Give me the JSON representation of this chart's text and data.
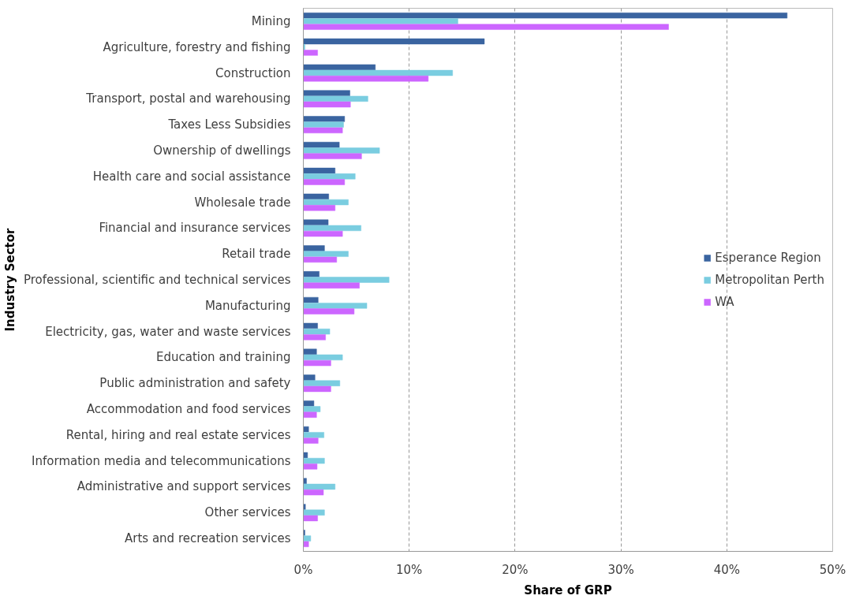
{
  "chart_data": {
    "type": "bar",
    "orientation": "horizontal",
    "xlabel": "Share of GRP",
    "ylabel": "Industry Sector",
    "categories": [
      "Mining",
      "Agriculture, forestry and fishing",
      "Construction",
      "Transport, postal and warehousing",
      "Taxes Less Subsidies",
      "Ownership of dwellings",
      "Health care and social assistance",
      "Wholesale trade",
      "Financial and insurance services",
      "Retail trade",
      "Professional, scientific and technical services",
      "Manufacturing",
      "Electricity, gas, water and waste services",
      "Education and training",
      "Public administration and safety",
      "Accommodation and food services",
      "Rental, hiring and real estate services",
      "Information media and telecommunications",
      "Administrative and support services",
      "Other services",
      "Arts and recreation services"
    ],
    "series": [
      {
        "name": "Esperance Region",
        "color": "#3a64a0",
        "values": [
          45.7,
          17.1,
          6.8,
          4.4,
          3.9,
          3.4,
          3.0,
          2.4,
          2.35,
          2.0,
          1.5,
          1.4,
          1.35,
          1.25,
          1.1,
          1.0,
          0.5,
          0.4,
          0.3,
          0.2,
          0.15
        ]
      },
      {
        "name": "Metropolitan Perth",
        "color": "#7acde0",
        "values": [
          14.6,
          0.15,
          14.1,
          6.1,
          3.8,
          7.2,
          4.9,
          4.25,
          5.45,
          4.25,
          8.1,
          6.0,
          2.5,
          3.7,
          3.45,
          1.6,
          1.95,
          2.0,
          3.0,
          2.0,
          0.7
        ]
      },
      {
        "name": "WA",
        "color": "#cc66ff",
        "values": [
          34.5,
          1.35,
          11.8,
          4.45,
          3.7,
          5.5,
          3.9,
          3.0,
          3.7,
          3.15,
          5.3,
          4.8,
          2.1,
          2.6,
          2.6,
          1.25,
          1.4,
          1.3,
          1.9,
          1.35,
          0.5
        ]
      }
    ],
    "xlim": [
      0,
      50
    ],
    "xticks": [
      {
        "value": 0,
        "label": "0%"
      },
      {
        "value": 10,
        "label": "10%"
      },
      {
        "value": 20,
        "label": "20%"
      },
      {
        "value": 30,
        "label": "30%"
      },
      {
        "value": 40,
        "label": "40%"
      },
      {
        "value": 50,
        "label": "50%"
      }
    ],
    "grid": "x",
    "legend": "right"
  }
}
